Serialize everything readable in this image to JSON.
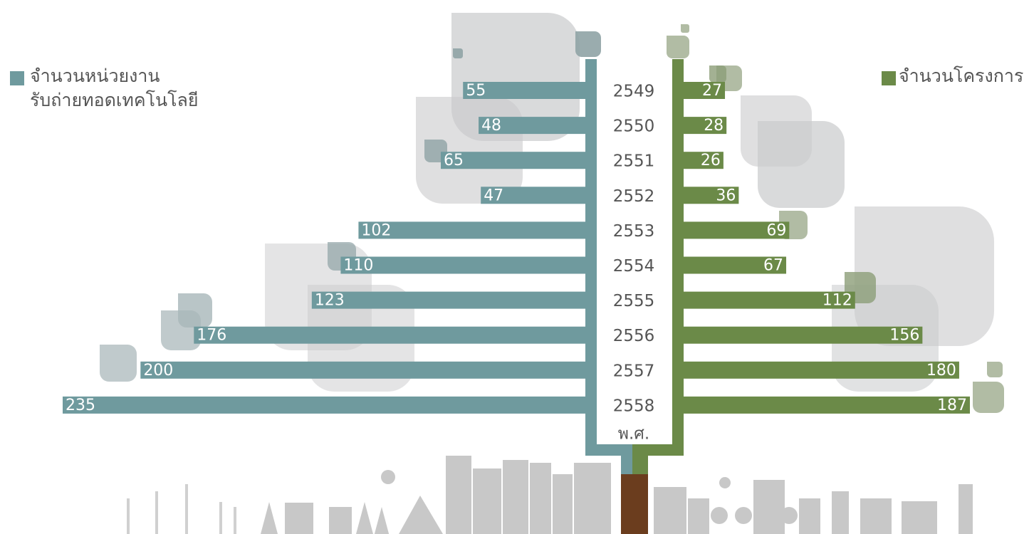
{
  "chart_data": {
    "type": "butterfly-bar",
    "categories": [
      "2549",
      "2550",
      "2551",
      "2552",
      "2553",
      "2554",
      "2555",
      "2556",
      "2557",
      "2558"
    ],
    "axis_label": "พ.ศ.",
    "series": [
      {
        "name": "จำนวนหน่วยงาน\nรับถ่ายทอดเทคโนโลยี",
        "color": "#6f9a9e",
        "side": "left",
        "values": [
          55,
          48,
          65,
          47,
          102,
          110,
          123,
          176,
          200,
          235
        ]
      },
      {
        "name": "จำนวนโครงการ",
        "color": "#6b8a48",
        "side": "right",
        "values": [
          27,
          28,
          26,
          36,
          69,
          67,
          112,
          156,
          180,
          187
        ]
      }
    ]
  }
}
